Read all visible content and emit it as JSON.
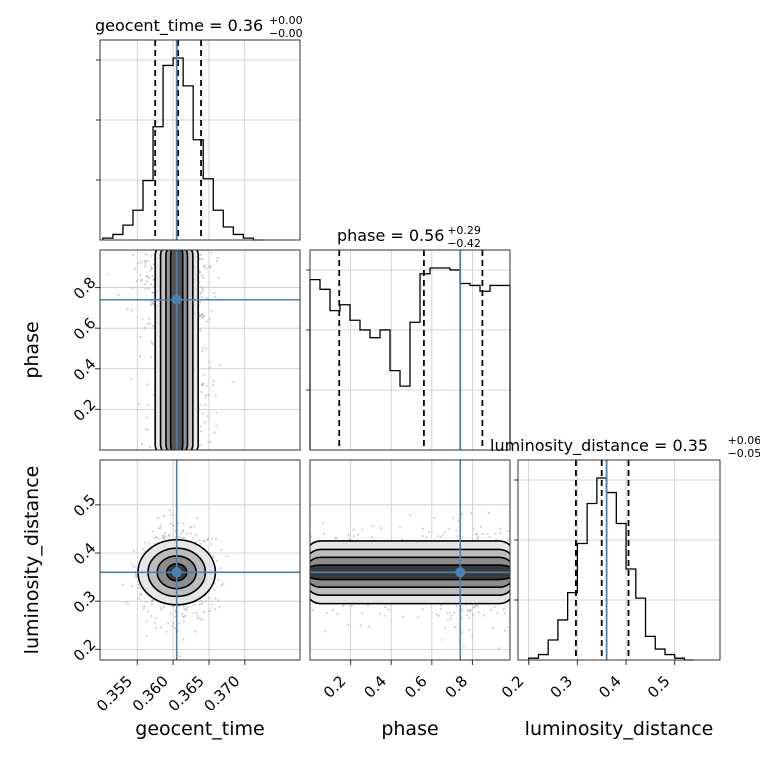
{
  "chart_data": {
    "type": "corner",
    "parameters": [
      "geocent_time",
      "phase",
      "luminosity_distance"
    ],
    "axis_labels": {
      "x": [
        "geocent_time",
        "phase",
        "luminosity_distance"
      ],
      "y": [
        "",
        "phase",
        "luminosity_distance"
      ]
    },
    "ranges": {
      "geocent_time": [
        0.3498,
        0.3777
      ],
      "phase": [
        0.0,
        0.985
      ],
      "luminosity_distance": [
        0.178,
        0.593
      ]
    },
    "ticks": {
      "geocent_time": {
        "values": [
          0.355,
          0.36,
          0.365,
          0.37
        ],
        "labels": [
          "0.355",
          "0.360",
          "0.365",
          "0.370"
        ]
      },
      "phase": {
        "values": [
          0.2,
          0.4,
          0.6,
          0.8
        ],
        "labels": [
          "0.2",
          "0.4",
          "0.6",
          "0.8"
        ]
      },
      "luminosity_distance": {
        "values": [
          0.2,
          0.3,
          0.4,
          0.5
        ],
        "labels": [
          "0.2",
          "0.3",
          "0.4",
          "0.5"
        ]
      }
    },
    "injection": {
      "geocent_time": 0.3605,
      "phase": 0.74,
      "luminosity_distance": 0.36
    },
    "titles": [
      {
        "param": "geocent_time",
        "main": "geocent_time = 0.36",
        "plus": "+0.00",
        "minus": "−0.00"
      },
      {
        "param": "phase",
        "main": "phase = 0.56",
        "plus": "+0.29",
        "minus": "−0.42"
      },
      {
        "param": "luminosity_distance",
        "main": "luminosity_distance = 0.35",
        "plus": "+0.06",
        "minus": "−0.05"
      }
    ],
    "quantiles": {
      "geocent_time": [
        0.3575,
        0.3607,
        0.3639
      ],
      "phase": [
        0.144,
        0.561,
        0.849
      ],
      "luminosity_distance": [
        0.297,
        0.35,
        0.405
      ]
    },
    "histograms": {
      "geocent_time": {
        "edges": [
          0.3502,
          0.3516,
          0.353,
          0.3544,
          0.3558,
          0.3572,
          0.3586,
          0.36,
          0.3614,
          0.3628,
          0.3642,
          0.3656,
          0.367,
          0.3684,
          0.3698,
          0.3712,
          0.3726
        ],
        "counts": [
          1,
          3,
          8,
          16,
          32,
          61,
          94,
          98,
          83,
          54,
          33,
          16,
          7,
          3,
          1,
          0
        ]
      },
      "phase": {
        "edges": [
          0.0,
          0.0493,
          0.0985,
          0.1478,
          0.197,
          0.2463,
          0.2955,
          0.3448,
          0.394,
          0.4433,
          0.4925,
          0.5418,
          0.591,
          0.6403,
          0.6895,
          0.7388,
          0.788,
          0.8373,
          0.8865,
          0.9358,
          0.985
        ],
        "counts": [
          8.8,
          8.3,
          7.2,
          7.5,
          6.7,
          6.2,
          5.8,
          6.2,
          4.1,
          3.3,
          6.6,
          9.1,
          9.4,
          9.4,
          9.3,
          8.6,
          8.5,
          8.2,
          8.5,
          8.5
        ]
      },
      "luminosity_distance": {
        "edges": [
          0.2,
          0.22,
          0.24,
          0.26,
          0.28,
          0.3,
          0.32,
          0.34,
          0.36,
          0.38,
          0.4,
          0.42,
          0.44,
          0.46,
          0.48,
          0.5,
          0.52,
          0.54
        ],
        "counts": [
          1,
          3,
          11,
          22,
          37,
          64,
          86,
          100,
          92,
          75,
          50,
          34,
          13,
          6,
          3,
          1,
          0
        ]
      }
    },
    "colors": {
      "injection": "#4682b4",
      "line": "#000000",
      "grid": "#c8c8c8",
      "points": "#9a9a9a"
    },
    "grid": true
  }
}
